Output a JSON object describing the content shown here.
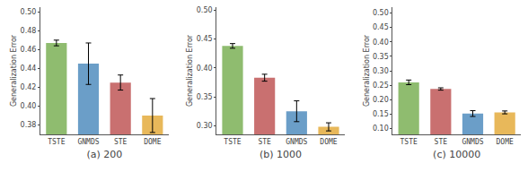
{
  "chart_data": [
    {
      "type": "bar",
      "title": "(a) 200",
      "categories": [
        "TSTE",
        "GNMDS",
        "STE",
        "DOME"
      ],
      "values": [
        0.467,
        0.445,
        0.425,
        0.39
      ],
      "errors": [
        0.003,
        0.022,
        0.008,
        0.018
      ],
      "colors": [
        "#8fbc6f",
        "#6b9ec8",
        "#c97070",
        "#e8b85a"
      ],
      "ylim": [
        0.37,
        0.505
      ],
      "yticks": [
        0.38,
        {
          "value": 0.4,
          "label": "0.40"
        },
        0.42,
        0.44,
        0.46,
        0.48,
        {
          "value": 0.5,
          "label": "0.50"
        }
      ],
      "ylabel": "Generalization Error",
      "grid": false
    },
    {
      "type": "bar",
      "title": "(b) 1000",
      "categories": [
        "TSTE",
        "STE",
        "GNMDS",
        "DOME"
      ],
      "values": [
        0.438,
        0.383,
        0.325,
        0.298
      ],
      "errors": [
        0.004,
        0.006,
        0.018,
        0.007
      ],
      "colors": [
        "#8fbc6f",
        "#c97070",
        "#6b9ec8",
        "#e8b85a"
      ],
      "ylim": [
        0.285,
        0.505
      ],
      "yticks": [
        {
          "value": 0.3,
          "label": "0.30"
        },
        0.35,
        {
          "value": 0.4,
          "label": "0.40"
        },
        0.45,
        {
          "value": 0.5,
          "label": "0.50"
        }
      ],
      "ylabel": "Generalization Error",
      "grid": false
    },
    {
      "type": "bar",
      "title": "(c) 10000",
      "categories": [
        "TSTE",
        "STE",
        "GNMDS",
        "DOME"
      ],
      "values": [
        0.26,
        0.237,
        0.152,
        0.156
      ],
      "errors": [
        0.008,
        0.004,
        0.01,
        0.005
      ],
      "colors": [
        "#8fbc6f",
        "#c97070",
        "#6b9ec8",
        "#e8b85a"
      ],
      "ylim": [
        0.08,
        0.52
      ],
      "yticks": [
        {
          "value": 0.1,
          "label": "0.10"
        },
        0.15,
        {
          "value": 0.2,
          "label": "0.20"
        },
        0.25,
        {
          "value": 0.3,
          "label": "0.30"
        },
        0.35,
        {
          "value": 0.4,
          "label": "0.40"
        },
        0.45,
        {
          "value": 0.5,
          "label": "0.50"
        }
      ],
      "ylabel": "Generalization Error",
      "grid": false
    }
  ]
}
